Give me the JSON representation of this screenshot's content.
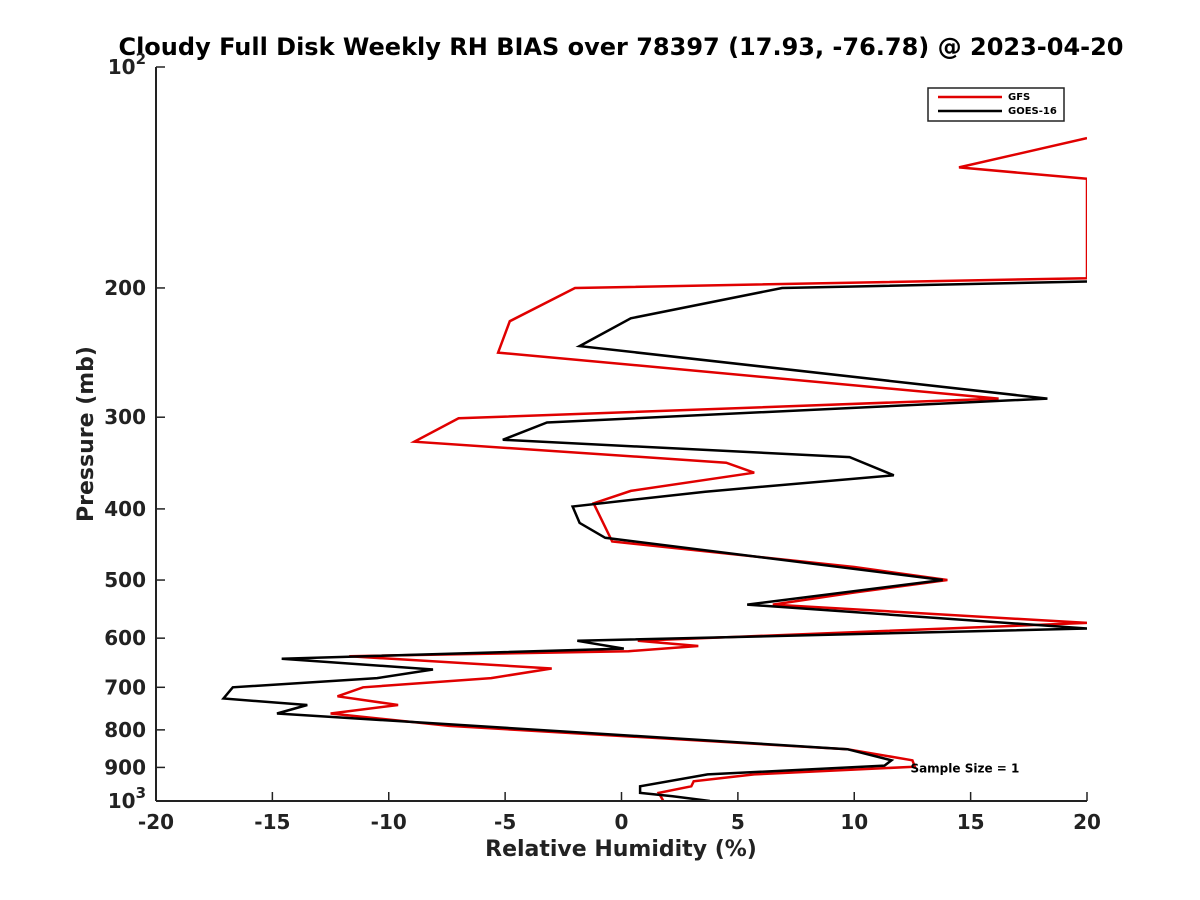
{
  "chart_data": {
    "type": "line",
    "title": "Cloudy Full Disk Weekly RH BIAS over 78397 (17.93, -76.78) @ 2023-04-20",
    "xlabel": "Relative Humidity (%)",
    "ylabel": "Pressure (mb)",
    "xlim": [
      -20,
      20
    ],
    "ylim": [
      100,
      1000
    ],
    "y_scale": "log",
    "y_reversed": true,
    "x_ticks": [
      -20,
      -15,
      -10,
      -5,
      0,
      5,
      10,
      15,
      20
    ],
    "x_tick_labels": [
      "-20",
      "-15",
      "-10",
      "-5",
      "0",
      "5",
      "10",
      "15",
      "20"
    ],
    "y_ticks": [
      100,
      200,
      300,
      400,
      500,
      600,
      700,
      800,
      900,
      1000
    ],
    "y_tick_labels": [
      {
        "base": "10",
        "exp": "2"
      },
      {
        "base": "200",
        "exp": ""
      },
      {
        "base": "300",
        "exp": ""
      },
      {
        "base": "400",
        "exp": ""
      },
      {
        "base": "500",
        "exp": ""
      },
      {
        "base": "600",
        "exp": ""
      },
      {
        "base": "700",
        "exp": ""
      },
      {
        "base": "800",
        "exp": ""
      },
      {
        "base": "900",
        "exp": ""
      },
      {
        "base": "10",
        "exp": "3"
      }
    ],
    "grid": false,
    "legend_position": "top-right",
    "annotation": "Sample Size = 1",
    "annotation_at": {
      "x": 12.5,
      "y": 900
    },
    "series": [
      {
        "name": "GFS",
        "color": "#e00000",
        "points": [
          [
            20,
            125
          ],
          [
            14.5,
            137
          ],
          [
            20,
            142
          ],
          [
            20,
            194
          ],
          [
            -2,
            200
          ],
          [
            -4.8,
            222
          ],
          [
            -5.3,
            245
          ],
          [
            16.2,
            283
          ],
          [
            -7,
            301
          ],
          [
            -8.9,
            324
          ],
          [
            4.5,
            346
          ],
          [
            5.7,
            357
          ],
          [
            0.4,
            378
          ],
          [
            -1.2,
            393
          ],
          [
            -0.4,
            443
          ],
          [
            10,
            480
          ],
          [
            14,
            500
          ],
          [
            10,
            520
          ],
          [
            6.5,
            540
          ],
          [
            20,
            572
          ],
          [
            0.7,
            605
          ],
          [
            3.3,
            615
          ],
          [
            0.3,
            625
          ],
          [
            -11.7,
            635
          ],
          [
            -3,
            660
          ],
          [
            -5.6,
            680
          ],
          [
            -11.1,
            700
          ],
          [
            -12.2,
            720
          ],
          [
            -9.6,
            740
          ],
          [
            -12.5,
            760
          ],
          [
            -7.4,
            790
          ],
          [
            9.7,
            850
          ],
          [
            12.5,
            880
          ],
          [
            12.6,
            898
          ],
          [
            5.7,
            920
          ],
          [
            3.1,
            940
          ],
          [
            3,
            955
          ],
          [
            1.6,
            975
          ],
          [
            1.8,
            1000
          ]
        ]
      },
      {
        "name": "GOES-16",
        "color": "#000000",
        "points": [
          [
            20,
            196
          ],
          [
            6.9,
            200
          ],
          [
            0.4,
            220
          ],
          [
            -1.8,
            240
          ],
          [
            18.3,
            283
          ],
          [
            -3.2,
            305
          ],
          [
            -5.1,
            322
          ],
          [
            9.8,
            340
          ],
          [
            11.7,
            360
          ],
          [
            3.6,
            379
          ],
          [
            -2.1,
            397
          ],
          [
            -1.8,
            418
          ],
          [
            -0.7,
            438
          ],
          [
            13.8,
            500
          ],
          [
            5.4,
            540
          ],
          [
            20,
            582
          ],
          [
            -1.9,
            605
          ],
          [
            0.1,
            620
          ],
          [
            -14.6,
            640
          ],
          [
            -8.1,
            662
          ],
          [
            -10.5,
            680
          ],
          [
            -16.7,
            700
          ],
          [
            -17.1,
            725
          ],
          [
            -13.5,
            740
          ],
          [
            -14.8,
            760
          ],
          [
            9.7,
            850
          ],
          [
            11.6,
            880
          ],
          [
            11.3,
            895
          ],
          [
            3.7,
            920
          ],
          [
            0.8,
            955
          ],
          [
            0.8,
            975
          ],
          [
            2.2,
            985
          ],
          [
            3.8,
            1000
          ]
        ]
      }
    ]
  }
}
